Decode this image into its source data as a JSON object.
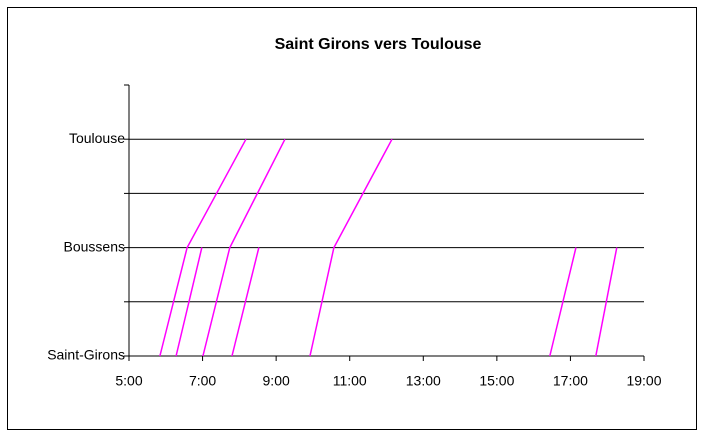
{
  "chart_data": {
    "type": "line",
    "title": "Saint Girons vers Toulouse",
    "color": "#ff00ff",
    "grid": true,
    "xlim": [
      5,
      19
    ],
    "xticks": [
      {
        "value": 5,
        "label": "5:00"
      },
      {
        "value": 7,
        "label": "7:00"
      },
      {
        "value": 9,
        "label": "9:00"
      },
      {
        "value": 11,
        "label": "11:00"
      },
      {
        "value": 13,
        "label": "13:00"
      },
      {
        "value": 15,
        "label": "15:00"
      },
      {
        "value": 17,
        "label": "17:00"
      },
      {
        "value": 19,
        "label": "19:00"
      }
    ],
    "ylim": [
      0,
      2.5
    ],
    "yticks": [
      {
        "value": 0,
        "label": "Saint-Girons"
      },
      {
        "value": 1,
        "label": "Boussens"
      },
      {
        "value": 2,
        "label": "Toulouse"
      }
    ],
    "yminor": [
      0.5,
      1.5,
      2.5
    ],
    "series": [
      {
        "x": [
          5.84,
          6.58,
          8.18
        ],
        "values": [
          0,
          1,
          2
        ]
      },
      {
        "x": [
          6.28,
          6.98
        ],
        "values": [
          0,
          1
        ]
      },
      {
        "x": [
          7.01,
          7.74,
          9.24
        ],
        "values": [
          0,
          1,
          2
        ]
      },
      {
        "x": [
          7.8,
          8.53
        ],
        "values": [
          0,
          1
        ]
      },
      {
        "x": [
          9.92,
          10.57,
          12.15
        ],
        "values": [
          0,
          1,
          2
        ]
      },
      {
        "x": [
          16.44,
          17.15
        ],
        "values": [
          0,
          1
        ]
      },
      {
        "x": [
          17.69,
          18.26
        ],
        "values": [
          0,
          1
        ]
      }
    ]
  }
}
